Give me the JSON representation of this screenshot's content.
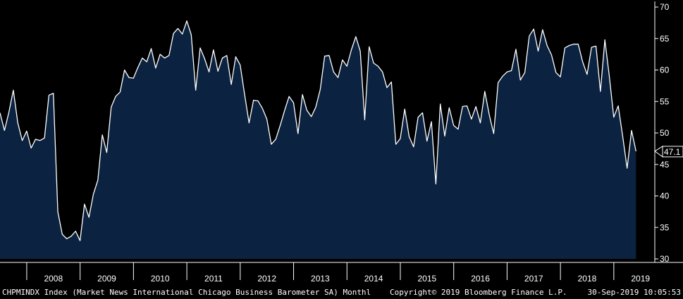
{
  "chart_data": {
    "type": "area",
    "title": "",
    "xlabel": "",
    "ylabel": "",
    "ylim": [
      30,
      70
    ],
    "y_ticks": [
      30,
      35,
      40,
      45,
      50,
      55,
      60,
      65,
      70
    ],
    "y_axis_side": "right",
    "x_tick_labels": [
      "2008",
      "2009",
      "2010",
      "2011",
      "2012",
      "2013",
      "2014",
      "2015",
      "2016",
      "2017",
      "2018",
      "2019"
    ],
    "grid": false,
    "colors": {
      "background": "#000000",
      "fill": "#0b2341",
      "line": "#ffffff",
      "axis": "#ffffff"
    },
    "last_value_label": "47.1",
    "series": [
      {
        "frequency": "monthly",
        "start": "2007-09",
        "end": "2019-09",
        "values": [
          53.2,
          50.4,
          53.3,
          56.8,
          51.6,
          48.8,
          50.3,
          47.6,
          49.0,
          48.8,
          49.2,
          56.0,
          56.3,
          37.5,
          33.9,
          33.2,
          33.6,
          34.4,
          32.9,
          38.7,
          36.6,
          40.3,
          42.5,
          49.7,
          46.9,
          54.1,
          55.8,
          56.5,
          60.0,
          58.8,
          58.7,
          60.4,
          61.9,
          61.3,
          63.4,
          60.3,
          62.5,
          61.9,
          62.3,
          65.8,
          66.6,
          65.7,
          67.8,
          65.6,
          56.8,
          63.5,
          61.8,
          59.7,
          63.2,
          59.8,
          61.9,
          62.3,
          57.7,
          62.1,
          60.8,
          56.1,
          51.6,
          55.2,
          55.1,
          53.9,
          52.2,
          48.2,
          49.0,
          51.2,
          53.6,
          55.8,
          54.8,
          49.9,
          56.1,
          53.6,
          52.6,
          54.1,
          56.9,
          62.2,
          62.3,
          59.7,
          58.8,
          61.6,
          60.6,
          63.2,
          65.3,
          63.0,
          52.1,
          63.7,
          61.1,
          60.6,
          59.7,
          57.2,
          58.1,
          48.2,
          49.1,
          53.8,
          49.4,
          47.8,
          52.5,
          53.2,
          48.7,
          51.8,
          41.9,
          54.6,
          49.5,
          54.0,
          51.2,
          50.6,
          54.2,
          54.3,
          52.2,
          54.2,
          51.6,
          56.6,
          52.9,
          49.9,
          58.0,
          59.0,
          59.7,
          59.9,
          63.3,
          58.4,
          59.6,
          65.4,
          66.5,
          63.0,
          66.4,
          63.9,
          62.4,
          59.6,
          58.9,
          63.5,
          63.9,
          64.1,
          64.1,
          61.3,
          59.3,
          63.6,
          63.8,
          56.6,
          64.8,
          59.0,
          52.5,
          54.3,
          49.5,
          44.4,
          50.4,
          47.1
        ]
      }
    ]
  },
  "footer": {
    "ticker": "CHPMINDX Index (Market News International Chicago Business Barometer SA)  Monthl",
    "copyright": "Copyright© 2019 Bloomberg Finance L.P.",
    "timestamp": "30-Sep-2019 10:05:53"
  }
}
